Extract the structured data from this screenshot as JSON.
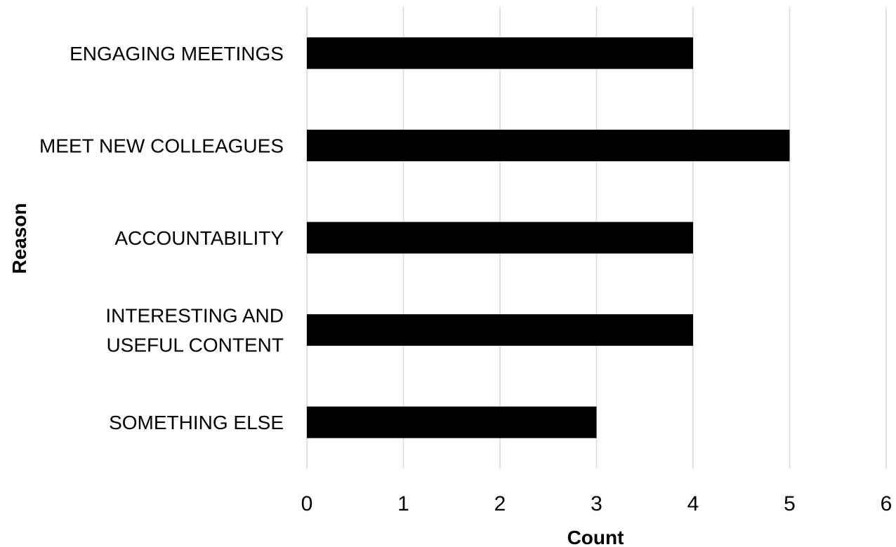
{
  "chart_data": {
    "type": "bar",
    "orientation": "horizontal",
    "categories": [
      [
        "ENGAGING MEETINGS"
      ],
      [
        "MEET NEW COLLEAGUES"
      ],
      [
        "ACCOUNTABILITY"
      ],
      [
        "INTERESTING AND",
        "USEFUL CONTENT"
      ],
      [
        "SOMETHING ELSE"
      ]
    ],
    "values": [
      4,
      5,
      4,
      4,
      3
    ],
    "xlabel": "Count",
    "ylabel": "Reason",
    "xlim": [
      0,
      6
    ],
    "xticks": [
      "0",
      "1",
      "2",
      "3",
      "4",
      "5",
      "6"
    ],
    "grid": "vertical",
    "legend": "none",
    "bar_color": "#000000",
    "grid_color": "#d9d9d9"
  }
}
